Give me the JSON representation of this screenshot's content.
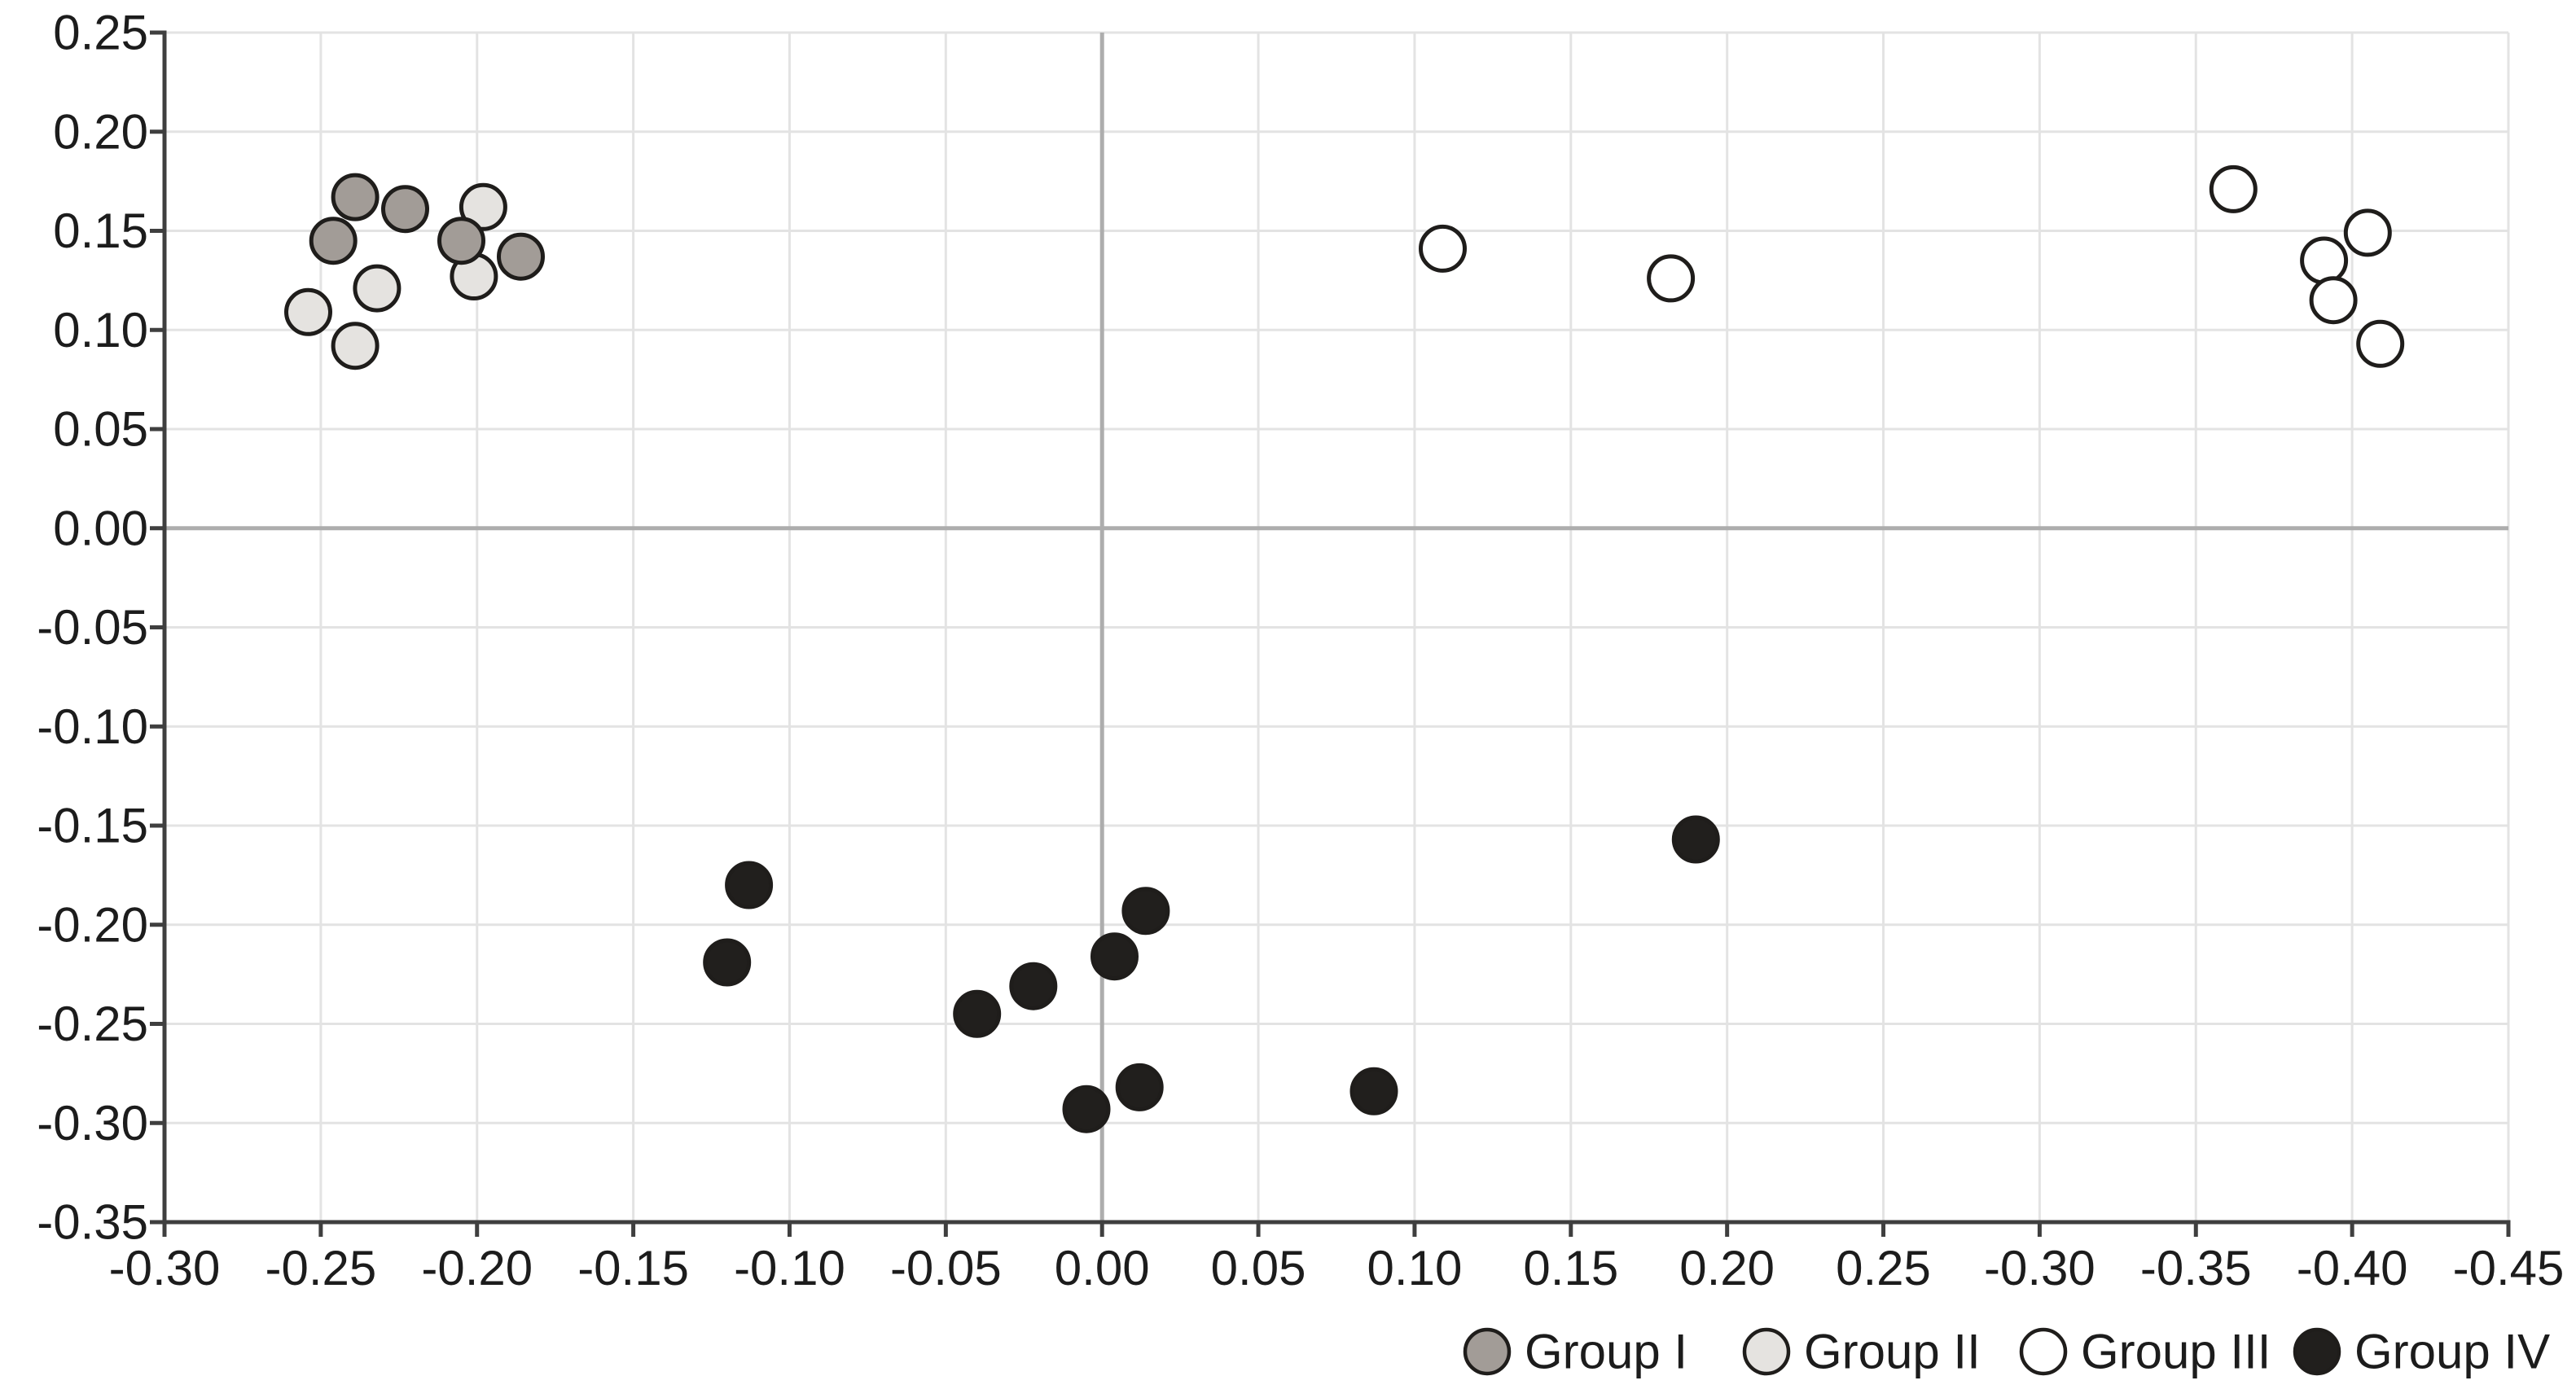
{
  "chart_data": {
    "type": "scatter",
    "title": "",
    "xlabel": "",
    "ylabel": "",
    "grid": true,
    "legend_position": "bottom-right",
    "x_axis_note": "x tick labels repeat negative values after 0.25: positions are linear left-to-right but printed labels mirror to negatives",
    "x_tick_labels": [
      "-0.30",
      "-0.25",
      "-0.20",
      "-0.15",
      "-0.10",
      "-0.05",
      "0.00",
      "0.05",
      "0.10",
      "0.15",
      "0.20",
      "0.25",
      "-0.30",
      "-0.35",
      "-0.40",
      "-0.45"
    ],
    "y_tick_labels": [
      "0.25",
      "0.20",
      "0.15",
      "0.10",
      "0.05",
      "0.00",
      "-0.05",
      "-0.10",
      "-0.15",
      "-0.20",
      "-0.25",
      "-0.30",
      "-0.35"
    ],
    "x_range_linear": [
      -0.3,
      0.45
    ],
    "y_range": [
      -0.35,
      0.25
    ],
    "zero_line_x_label": "0.00",
    "zero_line_y_label": "0.00",
    "series": [
      {
        "name": "Group I",
        "fill": "#a29c97",
        "points": [
          [
            -0.239,
            0.167
          ],
          [
            -0.223,
            0.161
          ],
          [
            -0.246,
            0.145
          ],
          [
            -0.205,
            0.145
          ],
          [
            -0.186,
            0.137
          ]
        ]
      },
      {
        "name": "Group II",
        "fill": "#e5e3e0",
        "points": [
          [
            -0.198,
            0.162
          ],
          [
            -0.201,
            0.127
          ],
          [
            -0.232,
            0.121
          ],
          [
            -0.254,
            0.109
          ],
          [
            -0.239,
            0.092
          ]
        ]
      },
      {
        "name": "Group III",
        "fill": "#ffffff",
        "points": [
          [
            0.109,
            0.141
          ],
          [
            0.182,
            0.126
          ],
          [
            0.362,
            0.171
          ],
          [
            0.405,
            0.149
          ],
          [
            0.391,
            0.135
          ],
          [
            0.394,
            0.115
          ],
          [
            0.409,
            0.093
          ]
        ]
      },
      {
        "name": "Group IV",
        "fill": "#211f1d",
        "points": [
          [
            -0.113,
            -0.18
          ],
          [
            -0.12,
            -0.219
          ],
          [
            -0.04,
            -0.245
          ],
          [
            -0.022,
            -0.231
          ],
          [
            0.004,
            -0.216
          ],
          [
            0.014,
            -0.193
          ],
          [
            -0.005,
            -0.293
          ],
          [
            0.012,
            -0.282
          ],
          [
            0.087,
            -0.284
          ],
          [
            0.19,
            -0.157
          ]
        ]
      }
    ],
    "legend": {
      "items": [
        {
          "label": "Group I",
          "fill": "#a29c97"
        },
        {
          "label": "Group II",
          "fill": "#e5e3e0"
        },
        {
          "label": "Group III",
          "fill": "#ffffff"
        },
        {
          "label": "Group IV",
          "fill": "#211f1d"
        }
      ]
    },
    "colors": {
      "marker_stroke": "#1f1d1b",
      "gridline": "#e3e3e3",
      "zero_line": "#adadad",
      "axis_line": "#3f3f3f",
      "tick_text": "#1c1c1c",
      "background": "#ffffff"
    }
  }
}
